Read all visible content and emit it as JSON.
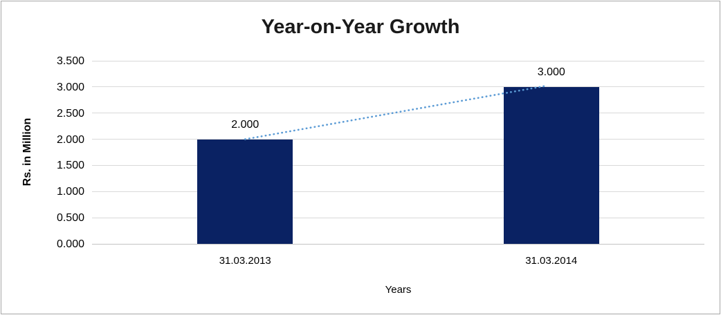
{
  "chart_data": {
    "type": "bar",
    "title": "Year-on-Year Growth",
    "xlabel": "Years",
    "ylabel": "Rs. in Million",
    "categories": [
      "31.03.2013",
      "31.03.2014"
    ],
    "series": [
      {
        "name": "Rs. in Million",
        "values": [
          2.0,
          3.0
        ]
      }
    ],
    "data_labels": [
      "2.000",
      "3.000"
    ],
    "yticks": [
      "3.500",
      "3.000",
      "2.500",
      "2.000",
      "1.500",
      "1.000",
      "0.500",
      "0.000"
    ],
    "ylim": [
      0.0,
      3.5
    ],
    "grid": true,
    "legend_position": "none",
    "bar_color": "#0a2263",
    "gridline_color": "#d9d9d9",
    "trendline": {
      "type": "linear",
      "style": "dotted",
      "color": "#5b9bd5",
      "from": {
        "category": "31.03.2013",
        "value": 2.0
      },
      "to": {
        "category": "31.03.2014",
        "value": 3.0
      }
    }
  }
}
